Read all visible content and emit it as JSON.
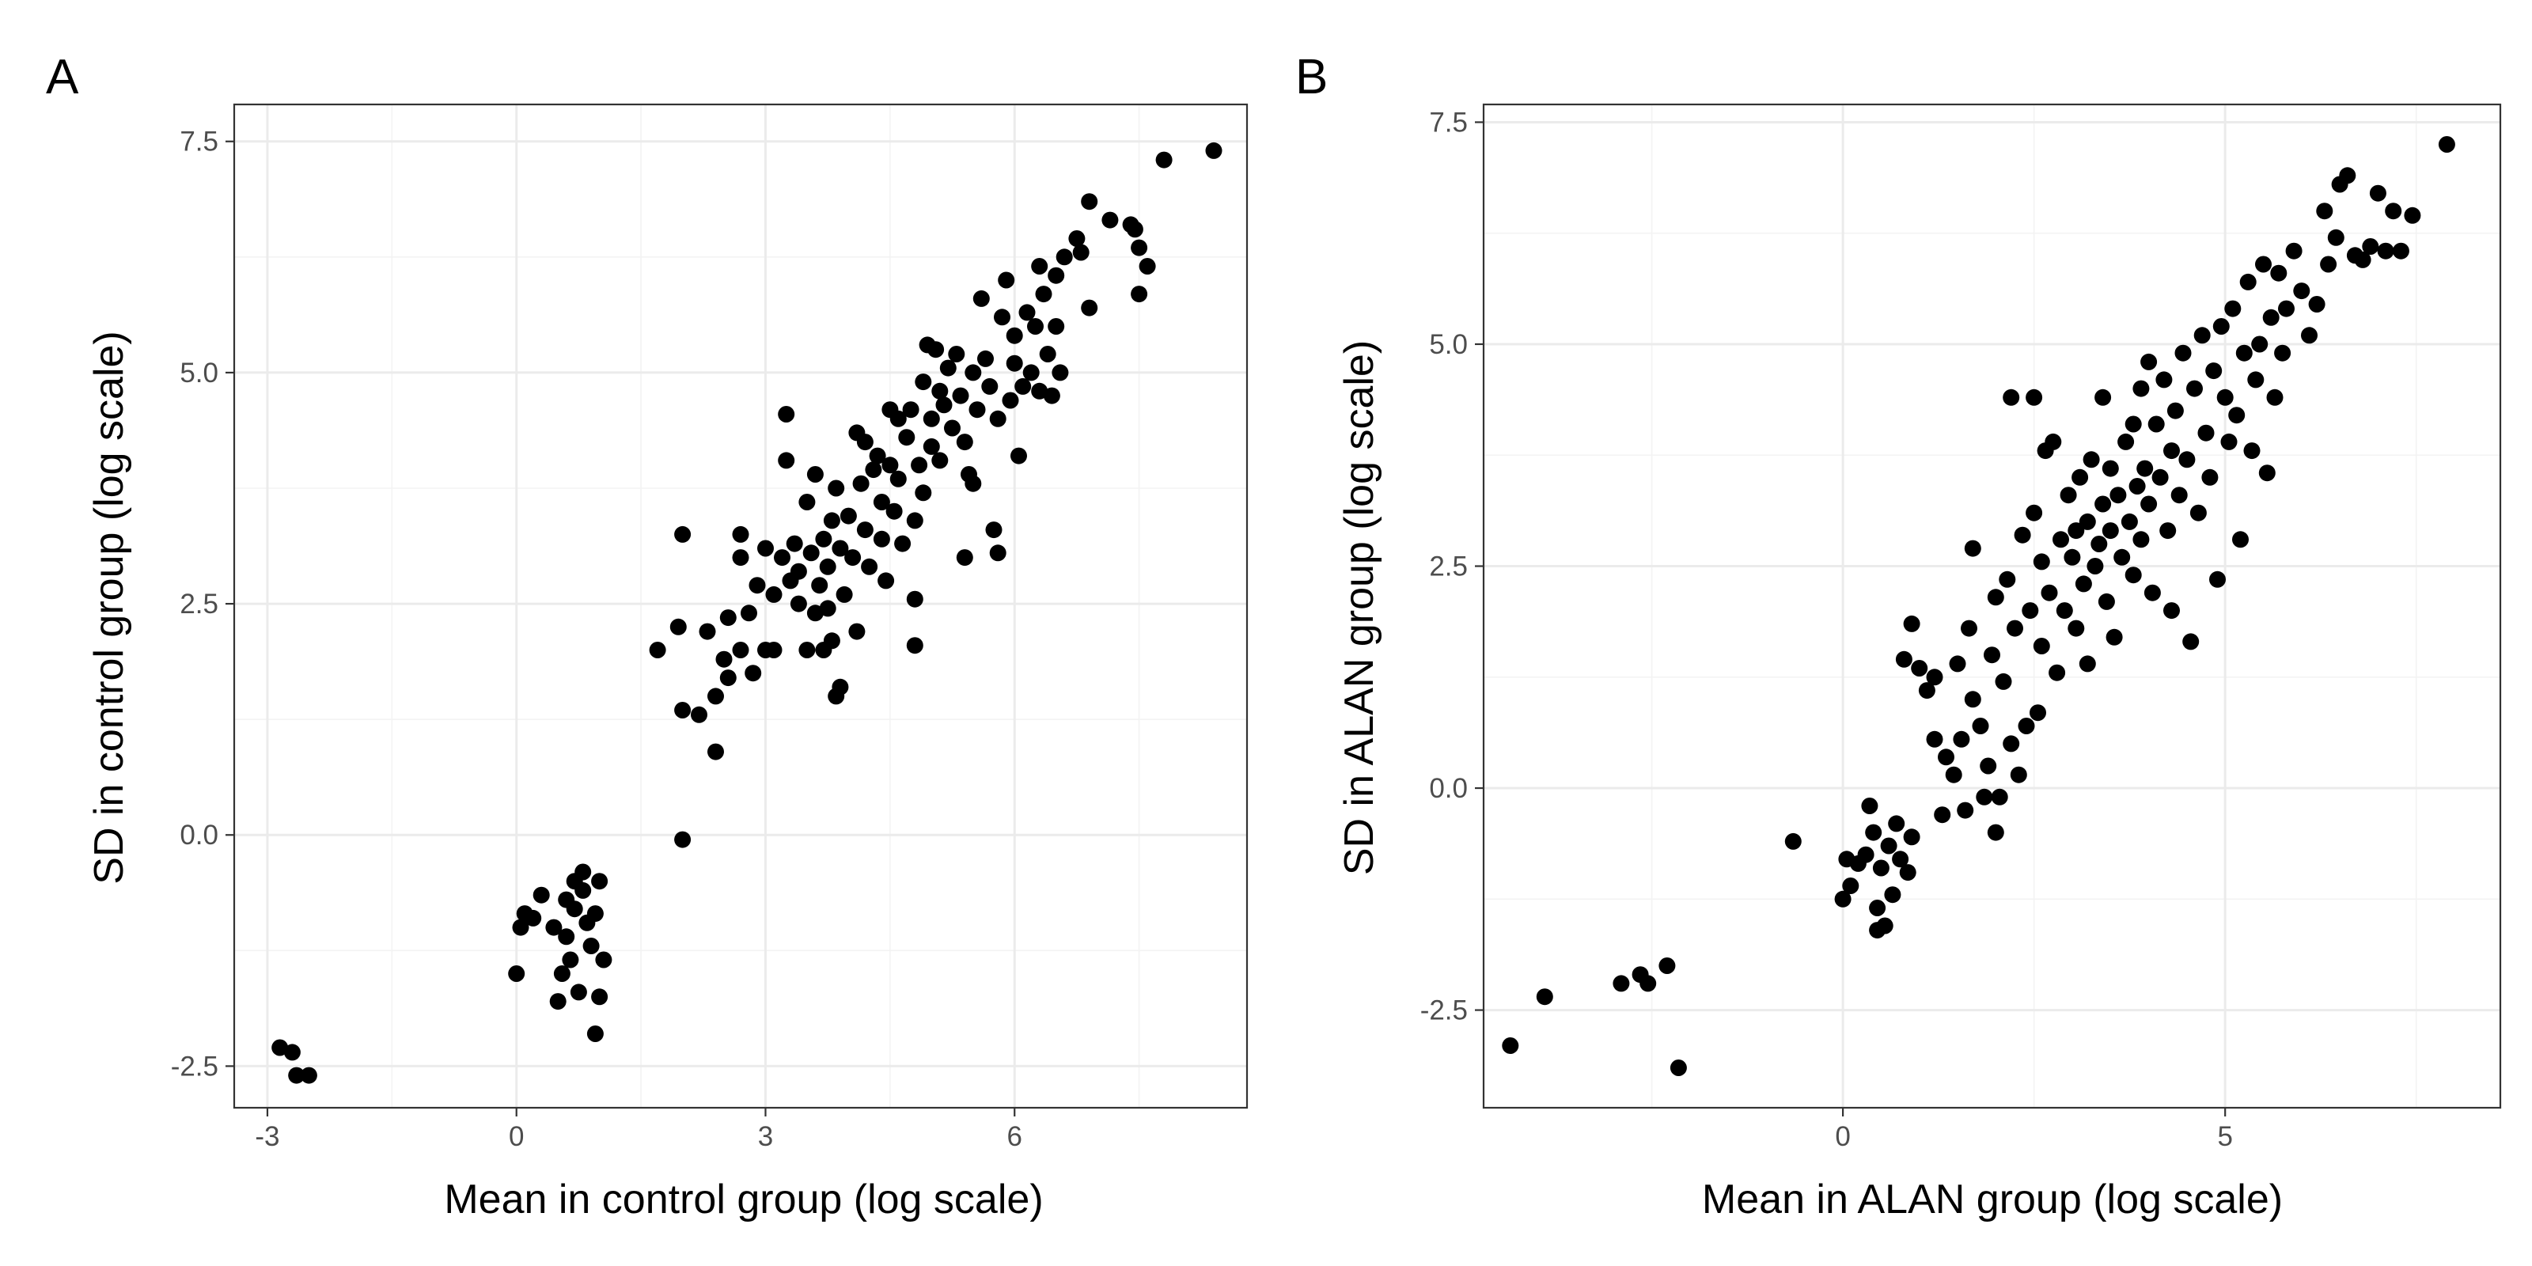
{
  "chart_data": [
    {
      "type": "scatter",
      "panel": "A",
      "xlabel": "Mean in control group (log scale)",
      "ylabel": "SD in control group (log scale)",
      "xlim": [
        -3.4,
        8.8
      ],
      "ylim": [
        -2.95,
        7.9
      ],
      "xticks": [
        -3,
        0,
        3,
        6
      ],
      "xtick_labels": [
        "-3",
        "0",
        "3",
        "6"
      ],
      "yticks": [
        -2.5,
        0,
        2.5,
        5,
        7.5
      ],
      "ytick_labels": [
        "-2.5",
        "0.0",
        "2.5",
        "5.0",
        "7.5"
      ],
      "grid": true,
      "legend": "none",
      "points": [
        [
          -2.85,
          -2.3
        ],
        [
          -2.7,
          -2.35
        ],
        [
          -2.65,
          -2.6
        ],
        [
          -2.5,
          -2.6
        ],
        [
          0.0,
          -1.5
        ],
        [
          0.05,
          -1.0
        ],
        [
          0.1,
          -0.85
        ],
        [
          0.2,
          -0.9
        ],
        [
          0.3,
          -0.65
        ],
        [
          0.45,
          -1.0
        ],
        [
          0.5,
          -1.8
        ],
        [
          0.55,
          -1.5
        ],
        [
          0.6,
          -0.7
        ],
        [
          0.6,
          -1.1
        ],
        [
          0.65,
          -1.35
        ],
        [
          0.7,
          -0.5
        ],
        [
          0.7,
          -0.8
        ],
        [
          0.75,
          -1.7
        ],
        [
          0.8,
          -0.4
        ],
        [
          0.8,
          -0.6
        ],
        [
          0.85,
          -0.95
        ],
        [
          0.9,
          -1.2
        ],
        [
          0.95,
          -0.85
        ],
        [
          0.95,
          -2.15
        ],
        [
          1.0,
          -1.75
        ],
        [
          1.0,
          -0.5
        ],
        [
          1.05,
          -1.35
        ],
        [
          1.7,
          2.0
        ],
        [
          1.95,
          2.25
        ],
        [
          2.0,
          1.35
        ],
        [
          2.0,
          3.25
        ],
        [
          2.0,
          -0.05
        ],
        [
          2.2,
          1.3
        ],
        [
          2.3,
          2.2
        ],
        [
          2.4,
          1.5
        ],
        [
          2.4,
          0.9
        ],
        [
          2.5,
          1.9
        ],
        [
          2.55,
          1.7
        ],
        [
          2.55,
          2.35
        ],
        [
          2.7,
          2.0
        ],
        [
          2.7,
          3.0
        ],
        [
          2.7,
          3.25
        ],
        [
          2.8,
          2.4
        ],
        [
          2.85,
          1.75
        ],
        [
          2.9,
          2.7
        ],
        [
          3.0,
          2.0
        ],
        [
          3.0,
          3.1
        ],
        [
          3.1,
          2.0
        ],
        [
          3.1,
          2.6
        ],
        [
          3.2,
          3.0
        ],
        [
          3.25,
          4.05
        ],
        [
          3.25,
          4.55
        ],
        [
          3.3,
          2.75
        ],
        [
          3.35,
          3.15
        ],
        [
          3.4,
          2.5
        ],
        [
          3.4,
          2.85
        ],
        [
          3.5,
          3.6
        ],
        [
          3.5,
          2.0
        ],
        [
          3.55,
          3.05
        ],
        [
          3.6,
          3.9
        ],
        [
          3.6,
          2.4
        ],
        [
          3.65,
          2.7
        ],
        [
          3.7,
          3.2
        ],
        [
          3.7,
          2.0
        ],
        [
          3.75,
          2.45
        ],
        [
          3.75,
          2.9
        ],
        [
          3.8,
          3.4
        ],
        [
          3.8,
          2.1
        ],
        [
          3.85,
          1.5
        ],
        [
          3.85,
          3.75
        ],
        [
          3.9,
          1.6
        ],
        [
          3.9,
          3.1
        ],
        [
          3.95,
          2.6
        ],
        [
          4.0,
          3.45
        ],
        [
          4.05,
          3.0
        ],
        [
          4.1,
          4.35
        ],
        [
          4.1,
          2.2
        ],
        [
          4.15,
          3.8
        ],
        [
          4.2,
          4.25
        ],
        [
          4.2,
          3.3
        ],
        [
          4.25,
          2.9
        ],
        [
          4.3,
          3.95
        ],
        [
          4.35,
          4.1
        ],
        [
          4.4,
          3.6
        ],
        [
          4.4,
          3.2
        ],
        [
          4.45,
          2.75
        ],
        [
          4.5,
          4.6
        ],
        [
          4.5,
          4.0
        ],
        [
          4.55,
          3.5
        ],
        [
          4.6,
          4.5
        ],
        [
          4.6,
          3.85
        ],
        [
          4.65,
          3.15
        ],
        [
          4.7,
          4.3
        ],
        [
          4.75,
          4.6
        ],
        [
          4.8,
          3.4
        ],
        [
          4.8,
          2.55
        ],
        [
          4.8,
          2.05
        ],
        [
          4.85,
          4.0
        ],
        [
          4.9,
          4.9
        ],
        [
          4.9,
          3.7
        ],
        [
          4.95,
          5.3
        ],
        [
          5.0,
          4.5
        ],
        [
          5.0,
          4.2
        ],
        [
          5.05,
          5.25
        ],
        [
          5.1,
          4.8
        ],
        [
          5.1,
          4.05
        ],
        [
          5.15,
          4.65
        ],
        [
          5.2,
          5.05
        ],
        [
          5.25,
          4.4
        ],
        [
          5.3,
          5.2
        ],
        [
          5.35,
          4.75
        ],
        [
          5.4,
          3.0
        ],
        [
          5.4,
          4.25
        ],
        [
          5.45,
          3.9
        ],
        [
          5.5,
          5.0
        ],
        [
          5.5,
          3.8
        ],
        [
          5.55,
          4.6
        ],
        [
          5.6,
          5.8
        ],
        [
          5.65,
          5.15
        ],
        [
          5.7,
          4.85
        ],
        [
          5.75,
          3.3
        ],
        [
          5.8,
          3.05
        ],
        [
          5.8,
          4.5
        ],
        [
          5.85,
          5.6
        ],
        [
          5.9,
          6.0
        ],
        [
          5.95,
          4.7
        ],
        [
          6.0,
          5.4
        ],
        [
          6.0,
          5.1
        ],
        [
          6.05,
          4.1
        ],
        [
          6.1,
          4.85
        ],
        [
          6.15,
          5.65
        ],
        [
          6.2,
          5.0
        ],
        [
          6.25,
          5.5
        ],
        [
          6.3,
          4.8
        ],
        [
          6.3,
          6.15
        ],
        [
          6.35,
          5.85
        ],
        [
          6.4,
          5.2
        ],
        [
          6.45,
          4.75
        ],
        [
          6.5,
          6.05
        ],
        [
          6.5,
          5.5
        ],
        [
          6.55,
          5.0
        ],
        [
          6.6,
          6.25
        ],
        [
          6.75,
          6.45
        ],
        [
          6.8,
          6.3
        ],
        [
          6.9,
          6.85
        ],
        [
          6.9,
          5.7
        ],
        [
          7.15,
          6.65
        ],
        [
          7.4,
          6.6
        ],
        [
          7.45,
          6.55
        ],
        [
          7.5,
          5.85
        ],
        [
          7.5,
          6.35
        ],
        [
          7.6,
          6.15
        ],
        [
          7.8,
          7.3
        ],
        [
          8.4,
          7.4
        ]
      ]
    },
    {
      "type": "scatter",
      "panel": "B",
      "xlabel": "Mean in ALAN group (log scale)",
      "ylabel": "SD in ALAN group (log scale)",
      "xlim": [
        -4.7,
        8.6
      ],
      "ylim": [
        -3.6,
        7.7
      ],
      "xticks": [
        0,
        5
      ],
      "xtick_labels": [
        "0",
        "5"
      ],
      "yticks": [
        -2.5,
        0,
        2.5,
        5,
        7.5
      ],
      "ytick_labels": [
        "-2.5",
        "0.0",
        "2.5",
        "5.0",
        "7.5"
      ],
      "grid": true,
      "legend": "none",
      "points": [
        [
          -4.35,
          -2.9
        ],
        [
          -3.9,
          -2.35
        ],
        [
          -2.9,
          -2.2
        ],
        [
          -2.65,
          -2.1
        ],
        [
          -2.55,
          -2.2
        ],
        [
          -2.3,
          -2.0
        ],
        [
          -2.15,
          -3.15
        ],
        [
          -0.65,
          -0.6
        ],
        [
          0.0,
          -1.25
        ],
        [
          0.05,
          -0.8
        ],
        [
          0.1,
          -1.1
        ],
        [
          0.2,
          -0.85
        ],
        [
          0.3,
          -0.75
        ],
        [
          0.35,
          -0.2
        ],
        [
          0.4,
          -0.5
        ],
        [
          0.45,
          -1.35
        ],
        [
          0.45,
          -1.6
        ],
        [
          0.5,
          -0.9
        ],
        [
          0.55,
          -1.55
        ],
        [
          0.6,
          -0.65
        ],
        [
          0.65,
          -1.2
        ],
        [
          0.7,
          -0.4
        ],
        [
          0.75,
          -0.8
        ],
        [
          0.8,
          1.45
        ],
        [
          0.85,
          -0.95
        ],
        [
          0.9,
          -0.55
        ],
        [
          0.9,
          1.85
        ],
        [
          1.0,
          1.35
        ],
        [
          1.1,
          1.1
        ],
        [
          1.2,
          1.25
        ],
        [
          1.2,
          0.55
        ],
        [
          1.3,
          -0.3
        ],
        [
          1.35,
          0.35
        ],
        [
          1.45,
          0.15
        ],
        [
          1.5,
          1.4
        ],
        [
          1.55,
          0.55
        ],
        [
          1.6,
          -0.25
        ],
        [
          1.65,
          1.8
        ],
        [
          1.7,
          1.0
        ],
        [
          1.7,
          2.7
        ],
        [
          1.8,
          0.7
        ],
        [
          1.85,
          -0.1
        ],
        [
          1.9,
          0.25
        ],
        [
          1.95,
          1.5
        ],
        [
          2.0,
          -0.5
        ],
        [
          2.0,
          2.15
        ],
        [
          2.05,
          -0.1
        ],
        [
          2.1,
          1.2
        ],
        [
          2.15,
          2.35
        ],
        [
          2.2,
          4.4
        ],
        [
          2.2,
          0.5
        ],
        [
          2.25,
          1.8
        ],
        [
          2.3,
          0.15
        ],
        [
          2.35,
          2.85
        ],
        [
          2.4,
          0.7
        ],
        [
          2.45,
          2.0
        ],
        [
          2.5,
          3.1
        ],
        [
          2.5,
          4.4
        ],
        [
          2.55,
          0.85
        ],
        [
          2.6,
          1.6
        ],
        [
          2.6,
          2.55
        ],
        [
          2.65,
          3.8
        ],
        [
          2.7,
          2.2
        ],
        [
          2.75,
          3.9
        ],
        [
          2.8,
          1.3
        ],
        [
          2.85,
          2.8
        ],
        [
          2.9,
          2.0
        ],
        [
          2.95,
          3.3
        ],
        [
          3.0,
          2.6
        ],
        [
          3.05,
          2.9
        ],
        [
          3.05,
          1.8
        ],
        [
          3.1,
          3.5
        ],
        [
          3.15,
          2.3
        ],
        [
          3.2,
          3.0
        ],
        [
          3.2,
          1.4
        ],
        [
          3.25,
          3.7
        ],
        [
          3.3,
          2.5
        ],
        [
          3.35,
          2.75
        ],
        [
          3.4,
          3.2
        ],
        [
          3.4,
          4.4
        ],
        [
          3.45,
          2.1
        ],
        [
          3.5,
          3.6
        ],
        [
          3.5,
          2.9
        ],
        [
          3.55,
          1.7
        ],
        [
          3.6,
          3.3
        ],
        [
          3.65,
          2.6
        ],
        [
          3.7,
          3.9
        ],
        [
          3.75,
          3.0
        ],
        [
          3.8,
          4.1
        ],
        [
          3.8,
          2.4
        ],
        [
          3.85,
          3.4
        ],
        [
          3.9,
          4.5
        ],
        [
          3.9,
          2.8
        ],
        [
          3.95,
          3.6
        ],
        [
          4.0,
          4.8
        ],
        [
          4.0,
          3.2
        ],
        [
          4.05,
          2.2
        ],
        [
          4.1,
          4.1
        ],
        [
          4.15,
          3.5
        ],
        [
          4.2,
          4.6
        ],
        [
          4.25,
          2.9
        ],
        [
          4.3,
          3.8
        ],
        [
          4.3,
          2.0
        ],
        [
          4.35,
          4.25
        ],
        [
          4.4,
          3.3
        ],
        [
          4.45,
          4.9
        ],
        [
          4.5,
          3.7
        ],
        [
          4.55,
          1.65
        ],
        [
          4.6,
          4.5
        ],
        [
          4.65,
          3.1
        ],
        [
          4.7,
          5.1
        ],
        [
          4.75,
          4.0
        ],
        [
          4.8,
          3.5
        ],
        [
          4.85,
          4.7
        ],
        [
          4.9,
          2.35
        ],
        [
          4.95,
          5.2
        ],
        [
          5.0,
          4.4
        ],
        [
          5.05,
          3.9
        ],
        [
          5.1,
          5.4
        ],
        [
          5.15,
          4.2
        ],
        [
          5.2,
          2.8
        ],
        [
          5.25,
          4.9
        ],
        [
          5.3,
          5.7
        ],
        [
          5.35,
          3.8
        ],
        [
          5.4,
          4.6
        ],
        [
          5.45,
          5.0
        ],
        [
          5.5,
          5.9
        ],
        [
          5.55,
          3.55
        ],
        [
          5.6,
          5.3
        ],
        [
          5.65,
          4.4
        ],
        [
          5.7,
          5.8
        ],
        [
          5.75,
          4.9
        ],
        [
          5.8,
          5.4
        ],
        [
          5.9,
          6.05
        ],
        [
          6.0,
          5.6
        ],
        [
          6.1,
          5.1
        ],
        [
          6.2,
          5.45
        ],
        [
          6.3,
          6.5
        ],
        [
          6.35,
          5.9
        ],
        [
          6.45,
          6.2
        ],
        [
          6.5,
          6.8
        ],
        [
          6.6,
          6.9
        ],
        [
          6.7,
          6.0
        ],
        [
          6.8,
          5.95
        ],
        [
          6.9,
          6.1
        ],
        [
          7.0,
          6.7
        ],
        [
          7.1,
          6.05
        ],
        [
          7.2,
          6.5
        ],
        [
          7.3,
          6.05
        ],
        [
          7.45,
          6.45
        ],
        [
          7.9,
          7.25
        ]
      ]
    }
  ],
  "panels": [
    {
      "letter": "A",
      "x_title": "Mean in control group (log scale)",
      "y_title": "SD in control group (log scale)"
    },
    {
      "letter": "B",
      "x_title": "Mean in ALAN group (log scale)",
      "y_title": "SD in ALAN group (log scale)"
    }
  ],
  "colors": {
    "points": "#000000",
    "grid_major": "#ebebeb",
    "grid_minor": "#f3f3f3",
    "panel_border": "#333333",
    "tick_label": "#4d4d4d"
  }
}
